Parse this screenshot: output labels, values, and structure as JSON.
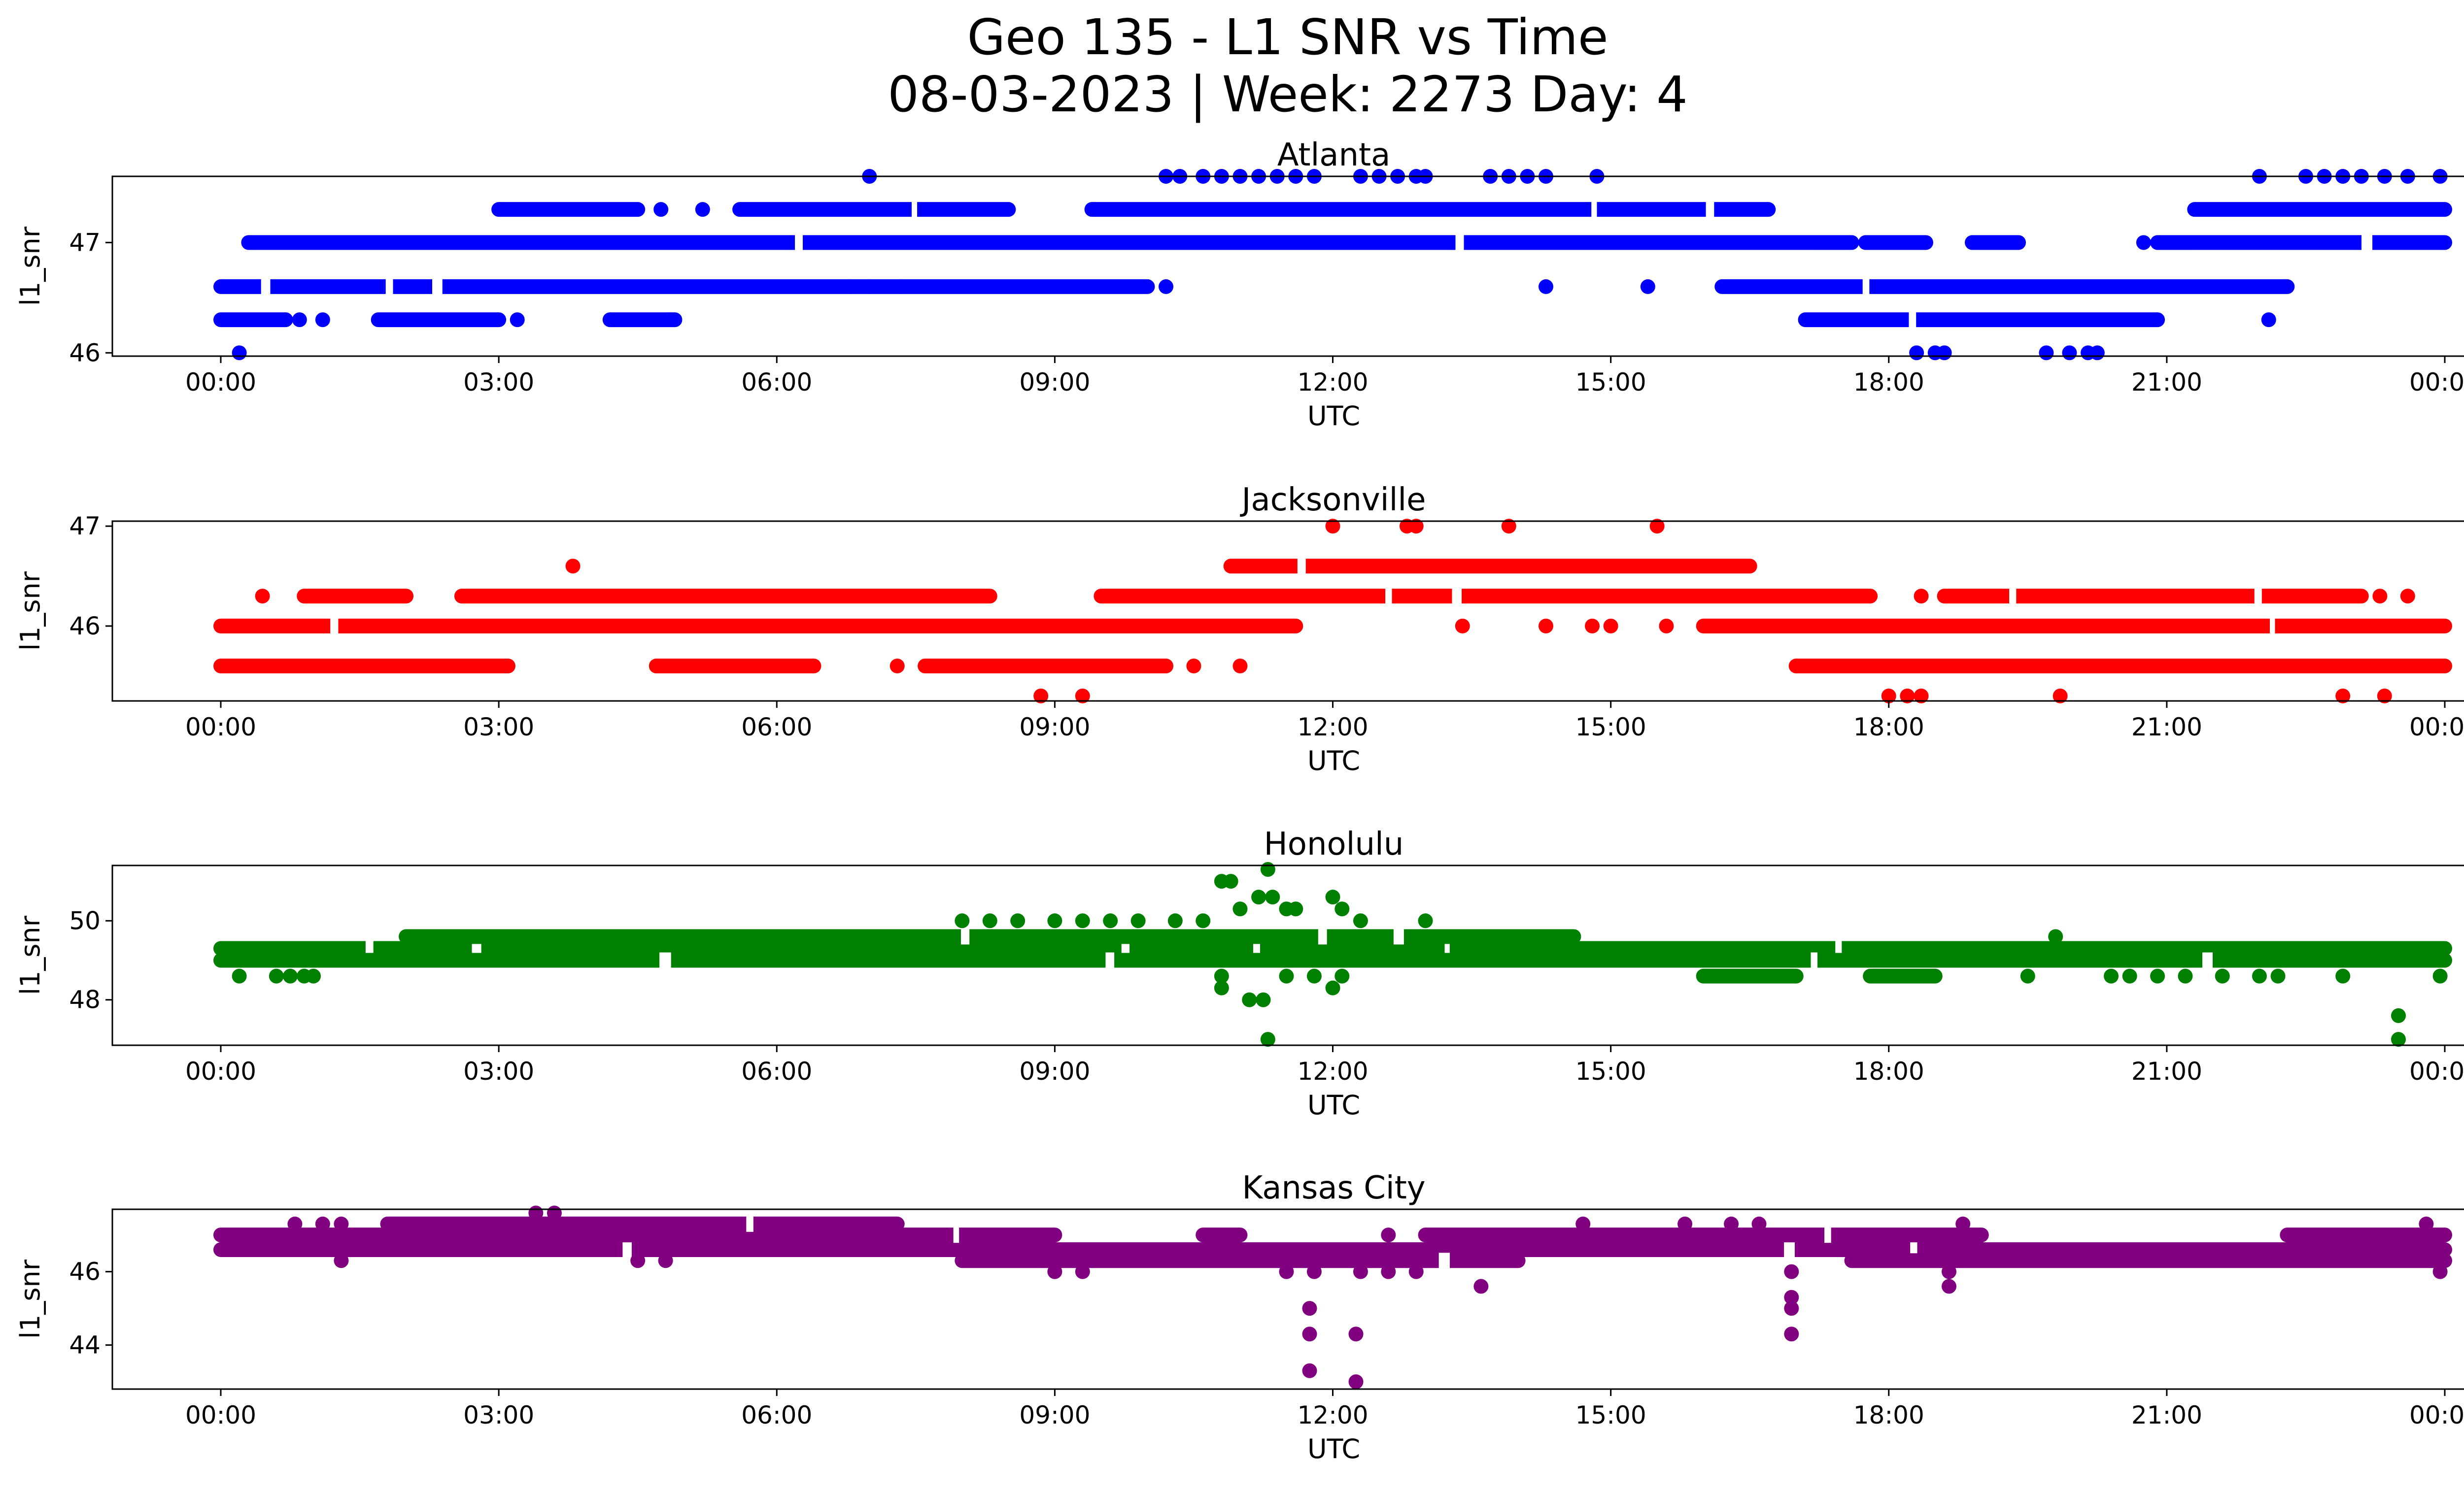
{
  "figure": {
    "title_line1": "Geo 135 - L1 SNR vs Time",
    "title_line2": "08-03-2023 | Week: 2273 Day: 4"
  },
  "chart_data": [
    {
      "type": "scatter",
      "title": "Atlanta",
      "xlabel": "UTC",
      "ylabel": "l1_snr",
      "color": "#0000ff",
      "xlim": [
        "00:00",
        "24:00"
      ],
      "ylim": [
        45.97,
        47.6
      ],
      "xticks": [
        "00:00",
        "03:00",
        "06:00",
        "09:00",
        "12:00",
        "15:00",
        "18:00",
        "21:00",
        "00:00"
      ],
      "yticks": [
        46,
        47
      ],
      "ytick_labels": [
        "46",
        "47"
      ],
      "bands": [
        {
          "y": 47.0,
          "segments": [
            [
              0.3,
              17.6
            ],
            [
              17.75,
              18.4
            ],
            [
              18.9,
              19.4
            ],
            [
              20.9,
              24.0
            ]
          ]
        },
        {
          "y": 46.6,
          "segments": [
            [
              0.0,
              10.0
            ],
            [
              16.2,
              22.3
            ]
          ]
        },
        {
          "y": 47.3,
          "segments": [
            [
              3.0,
              4.5
            ],
            [
              5.6,
              8.5
            ],
            [
              9.4,
              16.7
            ],
            [
              21.3,
              24.0
            ]
          ]
        },
        {
          "y": 46.3,
          "segments": [
            [
              0.0,
              0.7
            ],
            [
              1.7,
              3.0
            ],
            [
              4.2,
              4.9
            ],
            [
              17.1,
              20.9
            ]
          ]
        }
      ],
      "isolated": [
        {
          "x": 0.2,
          "y": 46.0
        },
        {
          "x": 1.1,
          "y": 46.3
        },
        {
          "x": 0.85,
          "y": 46.3
        },
        {
          "x": 3.2,
          "y": 46.3
        },
        {
          "x": 4.85,
          "y": 46.3
        },
        {
          "x": 4.75,
          "y": 47.3
        },
        {
          "x": 5.2,
          "y": 47.3
        },
        {
          "x": 6.8,
          "y": 46.6
        },
        {
          "x": 7.0,
          "y": 46.6
        },
        {
          "x": 7.35,
          "y": 46.6
        },
        {
          "x": 7.0,
          "y": 47.6
        },
        {
          "x": 10.2,
          "y": 46.6
        },
        {
          "x": 14.3,
          "y": 46.6
        },
        {
          "x": 15.4,
          "y": 46.6
        },
        {
          "x": 18.3,
          "y": 46.0
        },
        {
          "x": 18.5,
          "y": 46.0
        },
        {
          "x": 18.6,
          "y": 46.0
        },
        {
          "x": 19.7,
          "y": 46.0
        },
        {
          "x": 19.95,
          "y": 46.0
        },
        {
          "x": 20.15,
          "y": 46.0
        },
        {
          "x": 20.25,
          "y": 46.0
        },
        {
          "x": 20.75,
          "y": 47.0
        },
        {
          "x": 22.1,
          "y": 46.3
        },
        {
          "x": 10.2,
          "y": 47.6
        },
        {
          "x": 10.35,
          "y": 47.6
        },
        {
          "x": 10.6,
          "y": 47.6
        },
        {
          "x": 10.8,
          "y": 47.6
        },
        {
          "x": 11.0,
          "y": 47.6
        },
        {
          "x": 11.2,
          "y": 47.6
        },
        {
          "x": 11.4,
          "y": 47.6
        },
        {
          "x": 11.6,
          "y": 47.6
        },
        {
          "x": 11.8,
          "y": 47.6
        },
        {
          "x": 12.3,
          "y": 47.6
        },
        {
          "x": 12.5,
          "y": 47.6
        },
        {
          "x": 12.7,
          "y": 47.6
        },
        {
          "x": 12.9,
          "y": 47.6
        },
        {
          "x": 13.0,
          "y": 47.6
        },
        {
          "x": 13.7,
          "y": 47.6
        },
        {
          "x": 13.9,
          "y": 47.6
        },
        {
          "x": 14.1,
          "y": 47.6
        },
        {
          "x": 14.3,
          "y": 47.6
        },
        {
          "x": 14.85,
          "y": 47.6
        },
        {
          "x": 22.0,
          "y": 47.6
        },
        {
          "x": 22.5,
          "y": 47.6
        },
        {
          "x": 22.7,
          "y": 47.6
        },
        {
          "x": 22.9,
          "y": 47.6
        },
        {
          "x": 23.1,
          "y": 47.6
        },
        {
          "x": 23.35,
          "y": 47.6
        },
        {
          "x": 23.6,
          "y": 47.6
        },
        {
          "x": 23.95,
          "y": 47.6
        }
      ]
    },
    {
      "type": "scatter",
      "title": "Jacksonville",
      "xlabel": "UTC",
      "ylabel": "l1_snr",
      "color": "#ff0000",
      "xlim": [
        "00:00",
        "24:00"
      ],
      "ylim": [
        45.25,
        47.05
      ],
      "xticks": [
        "00:00",
        "03:00",
        "06:00",
        "09:00",
        "12:00",
        "15:00",
        "18:00",
        "21:00",
        "00:00"
      ],
      "yticks": [
        46,
        47
      ],
      "ytick_labels": [
        "46",
        "47"
      ],
      "bands": [
        {
          "y": 46.0,
          "segments": [
            [
              0.0,
              11.6
            ],
            [
              16.0,
              24.0
            ]
          ]
        },
        {
          "y": 45.6,
          "segments": [
            [
              0.0,
              3.1
            ],
            [
              4.7,
              6.4
            ],
            [
              7.6,
              10.2
            ],
            [
              17.0,
              24.0
            ]
          ]
        },
        {
          "y": 46.3,
          "segments": [
            [
              0.9,
              2.0
            ],
            [
              2.6,
              8.3
            ],
            [
              9.5,
              17.8
            ],
            [
              18.6,
              23.1
            ]
          ]
        },
        {
          "y": 46.6,
          "segments": [
            [
              10.9,
              16.5
            ]
          ]
        }
      ],
      "isolated": [
        {
          "x": 0.45,
          "y": 46.3
        },
        {
          "x": 3.8,
          "y": 46.6
        },
        {
          "x": 7.3,
          "y": 45.6
        },
        {
          "x": 10.5,
          "y": 45.6
        },
        {
          "x": 11.0,
          "y": 45.6
        },
        {
          "x": 8.85,
          "y": 45.3
        },
        {
          "x": 9.3,
          "y": 45.3
        },
        {
          "x": 12.0,
          "y": 47.0
        },
        {
          "x": 12.8,
          "y": 47.0
        },
        {
          "x": 12.9,
          "y": 47.0
        },
        {
          "x": 13.9,
          "y": 47.0
        },
        {
          "x": 15.5,
          "y": 47.0
        },
        {
          "x": 13.4,
          "y": 46.0
        },
        {
          "x": 14.3,
          "y": 46.0
        },
        {
          "x": 14.8,
          "y": 46.0
        },
        {
          "x": 15.0,
          "y": 46.0
        },
        {
          "x": 15.6,
          "y": 46.0
        },
        {
          "x": 18.0,
          "y": 45.3
        },
        {
          "x": 18.2,
          "y": 45.3
        },
        {
          "x": 18.35,
          "y": 45.3
        },
        {
          "x": 19.85,
          "y": 45.3
        },
        {
          "x": 22.9,
          "y": 45.3
        },
        {
          "x": 23.35,
          "y": 45.3
        },
        {
          "x": 18.35,
          "y": 46.3
        },
        {
          "x": 23.6,
          "y": 46.3
        },
        {
          "x": 23.3,
          "y": 46.3
        }
      ]
    },
    {
      "type": "scatter",
      "title": "Honolulu",
      "xlabel": "UTC",
      "ylabel": "l1_snr",
      "color": "#008000",
      "xlim": [
        "00:00",
        "24:00"
      ],
      "ylim": [
        46.85,
        51.4
      ],
      "xticks": [
        "00:00",
        "03:00",
        "06:00",
        "09:00",
        "12:00",
        "15:00",
        "18:00",
        "21:00",
        "00:00"
      ],
      "yticks": [
        48,
        50
      ],
      "ytick_labels": [
        "48",
        "50"
      ],
      "bands": [
        {
          "y": 49.3,
          "segments": [
            [
              0.0,
              24.0
            ]
          ]
        },
        {
          "y": 49.0,
          "segments": [
            [
              0.0,
              24.0
            ]
          ]
        },
        {
          "y": 49.6,
          "segments": [
            [
              2.0,
              14.6
            ]
          ]
        },
        {
          "y": 48.6,
          "segments": [
            [
              16.0,
              17.0
            ],
            [
              17.8,
              18.5
            ]
          ]
        }
      ],
      "isolated": [
        {
          "x": 0.2,
          "y": 48.6
        },
        {
          "x": 0.6,
          "y": 48.6
        },
        {
          "x": 0.75,
          "y": 48.6
        },
        {
          "x": 0.9,
          "y": 48.6
        },
        {
          "x": 1.0,
          "y": 48.6
        },
        {
          "x": 8.0,
          "y": 50.0
        },
        {
          "x": 8.3,
          "y": 50.0
        },
        {
          "x": 8.6,
          "y": 50.0
        },
        {
          "x": 9.0,
          "y": 50.0
        },
        {
          "x": 9.3,
          "y": 50.0
        },
        {
          "x": 9.6,
          "y": 50.0
        },
        {
          "x": 9.9,
          "y": 50.0
        },
        {
          "x": 10.3,
          "y": 50.0
        },
        {
          "x": 10.6,
          "y": 50.0
        },
        {
          "x": 10.8,
          "y": 51.0
        },
        {
          "x": 10.9,
          "y": 51.0
        },
        {
          "x": 11.3,
          "y": 51.3
        },
        {
          "x": 11.2,
          "y": 50.6
        },
        {
          "x": 11.35,
          "y": 50.6
        },
        {
          "x": 11.5,
          "y": 50.3
        },
        {
          "x": 11.6,
          "y": 50.3
        },
        {
          "x": 11.0,
          "y": 50.3
        },
        {
          "x": 12.0,
          "y": 50.6
        },
        {
          "x": 12.1,
          "y": 50.3
        },
        {
          "x": 12.3,
          "y": 50.0
        },
        {
          "x": 13.0,
          "y": 50.0
        },
        {
          "x": 10.8,
          "y": 48.6
        },
        {
          "x": 10.8,
          "y": 48.3
        },
        {
          "x": 11.1,
          "y": 48.0
        },
        {
          "x": 11.25,
          "y": 48.0
        },
        {
          "x": 11.3,
          "y": 47.0
        },
        {
          "x": 11.5,
          "y": 48.6
        },
        {
          "x": 11.8,
          "y": 48.6
        },
        {
          "x": 12.0,
          "y": 48.3
        },
        {
          "x": 12.1,
          "y": 48.6
        },
        {
          "x": 19.8,
          "y": 49.6
        },
        {
          "x": 19.5,
          "y": 48.6
        },
        {
          "x": 20.4,
          "y": 48.6
        },
        {
          "x": 20.6,
          "y": 48.6
        },
        {
          "x": 20.9,
          "y": 48.6
        },
        {
          "x": 21.2,
          "y": 48.6
        },
        {
          "x": 21.6,
          "y": 48.6
        },
        {
          "x": 22.0,
          "y": 48.6
        },
        {
          "x": 22.2,
          "y": 48.6
        },
        {
          "x": 22.9,
          "y": 48.6
        },
        {
          "x": 23.5,
          "y": 47.6
        },
        {
          "x": 23.5,
          "y": 47.0
        },
        {
          "x": 23.95,
          "y": 48.6
        }
      ]
    },
    {
      "type": "scatter",
      "title": "Kansas City",
      "xlabel": "UTC",
      "ylabel": "l1_snr",
      "color": "#800080",
      "xlim": [
        "00:00",
        "24:00"
      ],
      "ylim": [
        42.8,
        47.7
      ],
      "xticks": [
        "00:00",
        "03:00",
        "06:00",
        "09:00",
        "12:00",
        "15:00",
        "18:00",
        "21:00",
        "00:00"
      ],
      "yticks": [
        44,
        46
      ],
      "ytick_labels": [
        "44",
        "46"
      ],
      "bands": [
        {
          "y": 46.6,
          "segments": [
            [
              0.0,
              24.0
            ]
          ]
        },
        {
          "y": 47.0,
          "segments": [
            [
              0.0,
              9.0
            ],
            [
              10.6,
              11.0
            ],
            [
              13.0,
              19.0
            ],
            [
              22.3,
              24.0
            ]
          ]
        },
        {
          "y": 46.3,
          "segments": [
            [
              8.0,
              14.0
            ],
            [
              17.6,
              24.0
            ]
          ]
        },
        {
          "y": 47.3,
          "segments": [
            [
              1.8,
              7.3
            ]
          ]
        }
      ],
      "isolated": [
        {
          "x": 0.8,
          "y": 47.3
        },
        {
          "x": 1.1,
          "y": 47.3
        },
        {
          "x": 1.3,
          "y": 47.3
        },
        {
          "x": 3.4,
          "y": 47.6
        },
        {
          "x": 3.6,
          "y": 47.6
        },
        {
          "x": 1.3,
          "y": 46.3
        },
        {
          "x": 4.5,
          "y": 46.3
        },
        {
          "x": 4.8,
          "y": 46.3
        },
        {
          "x": 9.0,
          "y": 46.0
        },
        {
          "x": 9.3,
          "y": 46.0
        },
        {
          "x": 11.5,
          "y": 46.0
        },
        {
          "x": 11.8,
          "y": 46.0
        },
        {
          "x": 12.3,
          "y": 46.0
        },
        {
          "x": 12.6,
          "y": 46.0
        },
        {
          "x": 12.9,
          "y": 46.0
        },
        {
          "x": 11.75,
          "y": 45.0
        },
        {
          "x": 11.75,
          "y": 44.3
        },
        {
          "x": 11.75,
          "y": 43.3
        },
        {
          "x": 12.25,
          "y": 44.3
        },
        {
          "x": 12.25,
          "y": 43.0
        },
        {
          "x": 13.6,
          "y": 45.6
        },
        {
          "x": 16.95,
          "y": 46.0
        },
        {
          "x": 16.95,
          "y": 45.3
        },
        {
          "x": 16.95,
          "y": 45.0
        },
        {
          "x": 16.95,
          "y": 44.3
        },
        {
          "x": 18.65,
          "y": 46.0
        },
        {
          "x": 18.65,
          "y": 45.6
        },
        {
          "x": 18.8,
          "y": 47.3
        },
        {
          "x": 23.8,
          "y": 47.3
        },
        {
          "x": 23.95,
          "y": 46.3
        },
        {
          "x": 23.95,
          "y": 46.0
        },
        {
          "x": 15.8,
          "y": 47.3
        },
        {
          "x": 14.7,
          "y": 47.3
        },
        {
          "x": 16.3,
          "y": 47.3
        },
        {
          "x": 16.6,
          "y": 47.3
        },
        {
          "x": 12.6,
          "y": 47.0
        }
      ]
    }
  ]
}
